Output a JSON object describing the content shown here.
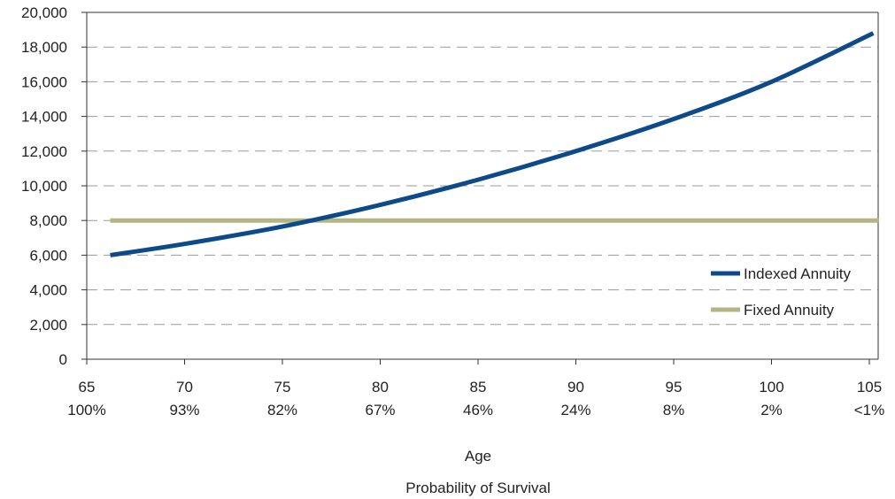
{
  "chart_data": {
    "type": "line",
    "title": "",
    "xlabel": "Age",
    "xlabel_secondary": "Probability of Survival",
    "ylabel": "",
    "xlim": [
      65,
      105
    ],
    "ylim": [
      0,
      20000
    ],
    "y_ticks": [
      "0",
      "2,000",
      "4,000",
      "6,000",
      "8,000",
      "10,000",
      "12,000",
      "14,000",
      "16,000",
      "18,000",
      "20,000"
    ],
    "x_ticks": [
      {
        "age": "65",
        "survival": "100%"
      },
      {
        "age": "70",
        "survival": "93%"
      },
      {
        "age": "75",
        "survival": "82%"
      },
      {
        "age": "80",
        "survival": "67%"
      },
      {
        "age": "85",
        "survival": "46%"
      },
      {
        "age": "90",
        "survival": "24%"
      },
      {
        "age": "95",
        "survival": "8%"
      },
      {
        "age": "100",
        "survival": "2%"
      },
      {
        "age": "105",
        "survival": "<1%"
      }
    ],
    "grid": true,
    "legend_position": "right",
    "series": [
      {
        "name": "Indexed Annuity",
        "color": "#0d4a8a",
        "x": [
          66.2,
          70,
          75,
          80,
          85,
          90,
          95,
          100,
          105.2
        ],
        "y": [
          6000,
          6650,
          7650,
          8900,
          10350,
          12000,
          13850,
          16000,
          18800
        ]
      },
      {
        "name": "Fixed Annuity",
        "color": "#b3b682",
        "x": [
          66.2,
          105.5
        ],
        "y": [
          8000,
          8000
        ]
      }
    ]
  }
}
